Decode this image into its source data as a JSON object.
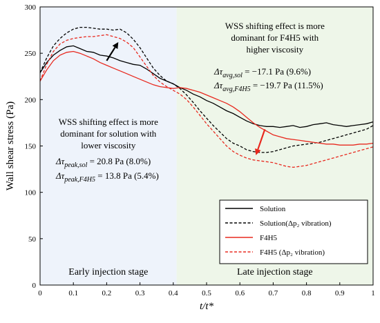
{
  "chart_data": {
    "type": "line",
    "title": "",
    "xlabel": "t/t*",
    "ylabel": "Wall shear stress (Pa)",
    "xlim": [
      0,
      1
    ],
    "ylim": [
      0,
      300
    ],
    "x_ticks": [
      "0",
      "0.1",
      "0.2",
      "0.3",
      "0.4",
      "0.5",
      "0.6",
      "0.7",
      "0.8",
      "0.9",
      "1"
    ],
    "y_ticks": [
      "0",
      "50",
      "100",
      "150",
      "200",
      "250",
      "300"
    ],
    "grid": false,
    "regions": [
      {
        "label": "Early injection stage",
        "x": [
          0,
          0.41
        ],
        "color": "#eef3fb"
      },
      {
        "label": "Late injection stage",
        "x": [
          0.41,
          1
        ],
        "color": "#eef6e9"
      }
    ],
    "legend": {
      "placement": "bottom-right",
      "entries": [
        "Solution",
        "Solution(Δp₂ vibration)",
        "F4H5",
        "F4H5 (Δp₂ vibration)"
      ]
    },
    "annotations": {
      "early_lines": [
        "WSS shifting effect is more",
        "dominant for solution with",
        "lower viscosity"
      ],
      "early_eq1": {
        "lhs": "Δτ",
        "sub": "peak,sol",
        "rhs": " = 20.8 Pa (8.0%)"
      },
      "early_eq2": {
        "lhs": "Δτ",
        "sub": "peak,F4H5",
        "rhs": " = 13.8 Pa (5.4%)"
      },
      "late_lines": [
        "WSS shifting effect is more",
        "dominant for F4H5 with",
        "higher viscosity"
      ],
      "late_eq1": {
        "lhs": "Δτ",
        "sub": "avg,sol",
        "rhs": " = −17.1 Pa (9.6%)"
      },
      "late_eq2": {
        "lhs": "Δτ",
        "sub": "avg,F4H5",
        "rhs": " = −19.7 Pa (11.5%)"
      }
    },
    "arrows": [
      {
        "color": "#000000",
        "from": [
          0.2,
          242
        ],
        "to": [
          0.235,
          262
        ]
      },
      {
        "color": "#e8281e",
        "from": [
          0.675,
          168
        ],
        "to": [
          0.648,
          140
        ]
      }
    ],
    "series": [
      {
        "name": "Solution",
        "color": "#000000",
        "dash": "solid",
        "x": [
          0,
          0.02,
          0.04,
          0.06,
          0.08,
          0.1,
          0.12,
          0.14,
          0.16,
          0.18,
          0.2,
          0.22,
          0.24,
          0.26,
          0.28,
          0.3,
          0.32,
          0.34,
          0.36,
          0.38,
          0.4,
          0.42,
          0.44,
          0.46,
          0.48,
          0.5,
          0.52,
          0.54,
          0.56,
          0.58,
          0.6,
          0.62,
          0.64,
          0.66,
          0.68,
          0.7,
          0.72,
          0.74,
          0.76,
          0.78,
          0.8,
          0.82,
          0.84,
          0.86,
          0.88,
          0.9,
          0.92,
          0.94,
          0.96,
          0.98,
          1.0
        ],
        "y": [
          229,
          240,
          248,
          253,
          257,
          258,
          255,
          252,
          251,
          248,
          247,
          245,
          242,
          240,
          238,
          237,
          233,
          228,
          223,
          220,
          217,
          213,
          210,
          206,
          203,
          199,
          196,
          192,
          188,
          185,
          181,
          177,
          174,
          172,
          171,
          171,
          170,
          171,
          172,
          170,
          171,
          173,
          174,
          175,
          173,
          172,
          171,
          172,
          173,
          174,
          176
        ]
      },
      {
        "name": "Solution(Δp₂ vibration)",
        "color": "#000000",
        "dash": "dashed",
        "x": [
          0,
          0.02,
          0.04,
          0.06,
          0.08,
          0.1,
          0.12,
          0.14,
          0.16,
          0.18,
          0.2,
          0.22,
          0.24,
          0.26,
          0.28,
          0.3,
          0.32,
          0.34,
          0.36,
          0.38,
          0.4,
          0.42,
          0.44,
          0.46,
          0.48,
          0.5,
          0.52,
          0.54,
          0.56,
          0.58,
          0.6,
          0.62,
          0.64,
          0.66,
          0.68,
          0.7,
          0.72,
          0.74,
          0.76,
          0.78,
          0.8,
          0.82,
          0.84,
          0.86,
          0.88,
          0.9,
          0.92,
          0.94,
          0.96,
          0.98,
          1.0
        ],
        "y": [
          229,
          245,
          258,
          266,
          272,
          276,
          278,
          278,
          277,
          276,
          276,
          275,
          276,
          272,
          265,
          256,
          245,
          234,
          226,
          220,
          217,
          212,
          205,
          197,
          188,
          180,
          172,
          165,
          158,
          153,
          150,
          146,
          144,
          143,
          143,
          144,
          146,
          148,
          150,
          151,
          152,
          153,
          154,
          156,
          158,
          160,
          162,
          164,
          166,
          168,
          172
        ]
      },
      {
        "name": "F4H5",
        "color": "#e8281e",
        "dash": "solid",
        "x": [
          0,
          0.02,
          0.04,
          0.06,
          0.08,
          0.1,
          0.12,
          0.14,
          0.16,
          0.18,
          0.2,
          0.22,
          0.24,
          0.26,
          0.28,
          0.3,
          0.32,
          0.34,
          0.36,
          0.38,
          0.4,
          0.42,
          0.44,
          0.46,
          0.48,
          0.5,
          0.52,
          0.54,
          0.56,
          0.58,
          0.6,
          0.62,
          0.64,
          0.66,
          0.68,
          0.7,
          0.72,
          0.74,
          0.76,
          0.78,
          0.8,
          0.82,
          0.84,
          0.86,
          0.88,
          0.9,
          0.92,
          0.94,
          0.96,
          0.98,
          1.0
        ],
        "y": [
          220,
          232,
          242,
          248,
          251,
          252,
          250,
          247,
          244,
          240,
          237,
          234,
          231,
          228,
          225,
          222,
          219,
          216,
          214,
          213,
          212,
          213,
          212,
          210,
          208,
          205,
          202,
          199,
          196,
          192,
          187,
          181,
          175,
          170,
          166,
          162,
          160,
          158,
          157,
          156,
          155,
          154,
          153,
          152,
          152,
          151,
          151,
          151,
          152,
          152,
          153
        ]
      },
      {
        "name": "F4H5 (Δp₂ vibration)",
        "color": "#e8281e",
        "dash": "dashed",
        "x": [
          0,
          0.02,
          0.04,
          0.06,
          0.08,
          0.1,
          0.12,
          0.14,
          0.16,
          0.18,
          0.2,
          0.22,
          0.24,
          0.26,
          0.28,
          0.3,
          0.32,
          0.34,
          0.36,
          0.38,
          0.4,
          0.42,
          0.44,
          0.46,
          0.48,
          0.5,
          0.52,
          0.54,
          0.56,
          0.58,
          0.6,
          0.62,
          0.64,
          0.66,
          0.68,
          0.7,
          0.72,
          0.74,
          0.76,
          0.78,
          0.8,
          0.82,
          0.84,
          0.86,
          0.88,
          0.9,
          0.92,
          0.94,
          0.96,
          0.98,
          1.0
        ],
        "y": [
          220,
          238,
          252,
          260,
          264,
          266,
          267,
          268,
          268,
          269,
          270,
          268,
          266,
          262,
          256,
          246,
          236,
          226,
          219,
          214,
          210,
          206,
          200,
          192,
          183,
          174,
          166,
          158,
          150,
          144,
          140,
          137,
          135,
          134,
          133,
          132,
          130,
          128,
          127,
          128,
          129,
          131,
          133,
          135,
          137,
          139,
          141,
          143,
          145,
          147,
          149
        ]
      }
    ]
  }
}
